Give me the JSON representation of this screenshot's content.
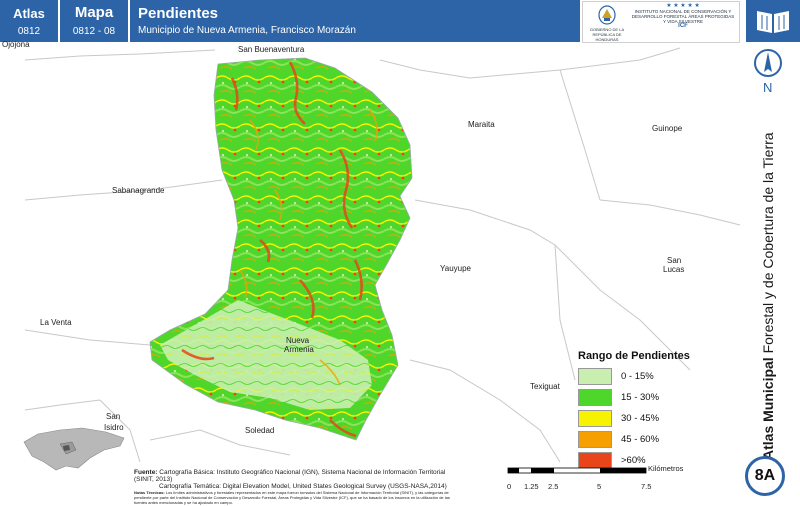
{
  "header": {
    "atlas_label": "Atlas",
    "atlas_number": "0812",
    "mapa_label": "Mapa",
    "mapa_number": "0812 - 08",
    "title": "Pendientes",
    "subtitle": "Municipio de Nueva Armenia, Francisco Morazán"
  },
  "logos": {
    "left_caption": "GOBIERNO DE LA REPÚBLICA DE HONDURAS",
    "right_stars": "★ ★ ★ ★ ★",
    "right_caption": "INSTITUTO NACIONAL DE CONSERVACIÓN Y DESARROLLO FORESTAL ÁREAS PROTEGIDAS Y VIDA SILVESTRE",
    "right_acronym": "ICF"
  },
  "sidebar": {
    "book_icon": "open-book-icon",
    "north_label": "N",
    "vertical_title_bold": "Atlas Municipal",
    "vertical_title_rest": " Forestal y de Cobertura de la Tierra",
    "badge": "8A"
  },
  "map": {
    "places": [
      {
        "name": "Ojojona"
      },
      {
        "name": "San Buenaventura"
      },
      {
        "name": "Maraita"
      },
      {
        "name": "Guinope"
      },
      {
        "name": "Sabanagrande"
      },
      {
        "name": "Yauyupe"
      },
      {
        "name": "San"
      },
      {
        "name": "Lucas"
      },
      {
        "name": "La Venta"
      },
      {
        "name": "Nueva"
      },
      {
        "name": "Armenia"
      },
      {
        "name": "Texiguat"
      },
      {
        "name": "San"
      },
      {
        "name": "Isidro"
      },
      {
        "name": "Soledad"
      }
    ]
  },
  "legend": {
    "title": "Rango de Pendientes",
    "items": [
      {
        "label": "0 - 15%",
        "color": "#c8efb0"
      },
      {
        "label": "15 - 30%",
        "color": "#4ed62a"
      },
      {
        "label": "30 - 45%",
        "color": "#f7f200"
      },
      {
        "label": "45 - 60%",
        "color": "#f5a000"
      },
      {
        "label": ">60%",
        "color": "#e8461a"
      }
    ]
  },
  "source": {
    "label": "Fuente:",
    "line1": "Cartografía Básica: Instituto Geográfico Nacional (IGN), Sistema Nacional de Información Territorial (SINIT, 2013)",
    "line2": "Cartografía Temática: Digital Elevation Model, United States Geological Survey (USGS-NASA,2014)",
    "notes_label": "Notas Técnicas:",
    "notes": "Los límites administrativos y forestales representados en este mapa fueron tomados del Sistema Nacional de Información Territorial (SINIT), y las categorías de pendiente por parte del Instituto Nacional de Conservación y Desarrollo Forestal, Áreas Protegidas y Vida Silvestre (ICF), que se ha basado de los insumos en la utilización de las fuentes antes mencionadas y se ha ajustado en campo."
  },
  "scale": {
    "ticks": [
      "0",
      "1.25",
      "2.5",
      "5",
      "7.5"
    ],
    "unit": "Kilómetros"
  },
  "colors": {
    "header_blue": "#2c64a7",
    "slope_0_15": "#c8efb0",
    "slope_15_30": "#4ed62a",
    "slope_30_45": "#f7f200",
    "slope_45_60": "#f5a000",
    "slope_60_plus": "#e8461a"
  }
}
